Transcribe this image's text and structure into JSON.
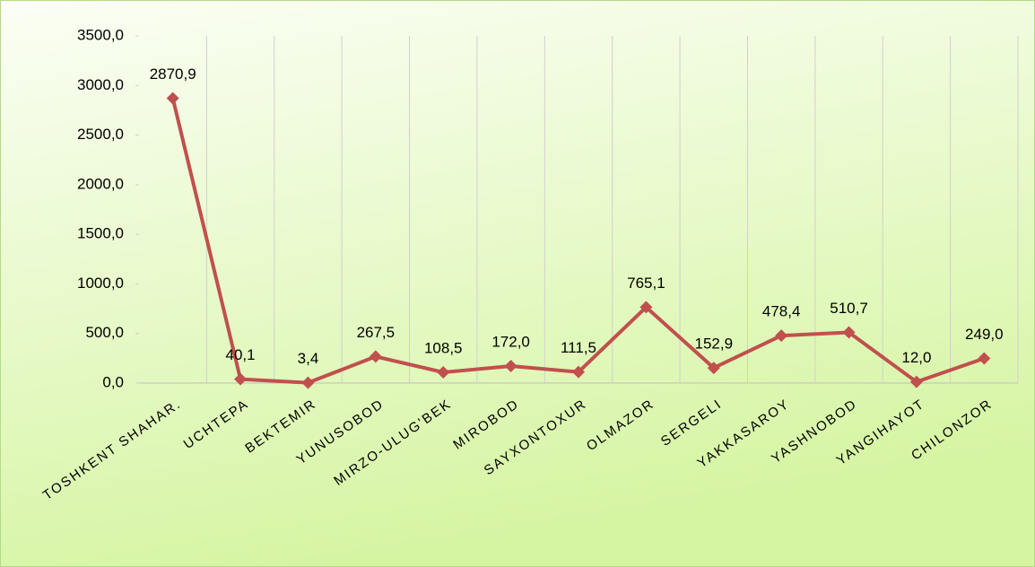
{
  "chart_data": {
    "type": "line",
    "categories": [
      "TOSHKENT SHAHAR.",
      "UCHTEPA",
      "BEKTEMIR",
      "YUNUSOBOD",
      "MIRZO-ULUG'BEK",
      "MIROBOD",
      "SAYXONTOXUR",
      "OLMAZOR",
      "SERGELI",
      "YAKKASAROY",
      "YASHNOBOD",
      "YANGIHAYOT",
      "CHILONZOR"
    ],
    "values": [
      2870.9,
      40.1,
      3.4,
      267.5,
      108.5,
      172.0,
      111.5,
      765.1,
      152.9,
      478.4,
      510.7,
      12.0,
      249.0
    ],
    "value_labels": [
      "2870,9",
      "40,1",
      "3,4",
      "267,5",
      "108,5",
      "172,0",
      "111,5",
      "765,1",
      "152,9",
      "478,4",
      "510,7",
      "12,0",
      "249,0"
    ],
    "color": "#c0504d",
    "ylim": [
      0,
      3500
    ],
    "yticks": [
      {
        "value": 0,
        "label": "0,0"
      },
      {
        "value": 500,
        "label": "500,0"
      },
      {
        "value": 1000,
        "label": "1000,0"
      },
      {
        "value": 1500,
        "label": "1500,0"
      },
      {
        "value": 2000,
        "label": "2000,0"
      },
      {
        "value": 2500,
        "label": "2500,0"
      },
      {
        "value": 3000,
        "label": "3000,0"
      },
      {
        "value": 3500,
        "label": "3500,0"
      }
    ]
  }
}
